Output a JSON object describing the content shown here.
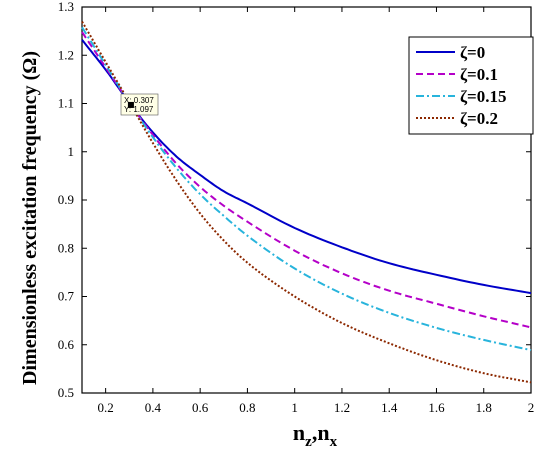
{
  "chart_data": {
    "type": "line",
    "xlabel": "n_z,n_x",
    "xlabel_main": "n",
    "xlabel_sub1": "z",
    "xlabel_sep": ",n",
    "xlabel_sub2": "x",
    "ylabel": "Dimensionless excitation frequency (Ω)",
    "xlim": [
      0.1,
      2
    ],
    "ylim": [
      0.5,
      1.3
    ],
    "xticks": [
      "0.2",
      "0.4",
      "0.6",
      "0.8",
      "1",
      "1.2",
      "1.4",
      "1.6",
      "1.8",
      "2"
    ],
    "yticks": [
      "0.5",
      "0.6",
      "0.7",
      "0.8",
      "0.9",
      "1",
      "1.1",
      "1.2",
      "1.3"
    ],
    "legend_position": "top-right",
    "grid": false,
    "series": [
      {
        "name": "ζ=0",
        "color": "#0000c8",
        "style": "solid",
        "x": [
          0.1,
          0.2,
          0.307,
          0.4,
          0.5,
          0.6,
          0.7,
          0.8,
          1.0,
          1.2,
          1.4,
          1.6,
          1.8,
          2.0
        ],
        "y": [
          1.232,
          1.17,
          1.097,
          1.04,
          0.99,
          0.952,
          0.918,
          0.893,
          0.842,
          0.802,
          0.769,
          0.745,
          0.724,
          0.707
        ]
      },
      {
        "name": "ζ=0.1",
        "color": "#b400c8",
        "style": "dashed",
        "x": [
          0.1,
          0.2,
          0.307,
          0.4,
          0.5,
          0.6,
          0.7,
          0.8,
          1.0,
          1.2,
          1.4,
          1.6,
          1.8,
          2.0
        ],
        "y": [
          1.248,
          1.175,
          1.097,
          1.035,
          0.975,
          0.927,
          0.888,
          0.855,
          0.795,
          0.748,
          0.712,
          0.685,
          0.659,
          0.636
        ]
      },
      {
        "name": "ζ=0.15",
        "color": "#28b4dc",
        "style": "dashdot",
        "x": [
          0.1,
          0.2,
          0.307,
          0.4,
          0.5,
          0.6,
          0.7,
          0.8,
          1.0,
          1.2,
          1.4,
          1.6,
          1.8,
          2.0
        ],
        "y": [
          1.258,
          1.18,
          1.097,
          1.03,
          0.966,
          0.912,
          0.867,
          0.826,
          0.758,
          0.706,
          0.666,
          0.635,
          0.61,
          0.589
        ]
      },
      {
        "name": "ζ=0.2",
        "color": "#8c2800",
        "style": "dotted",
        "x": [
          0.1,
          0.2,
          0.307,
          0.4,
          0.5,
          0.6,
          0.7,
          0.8,
          1.0,
          1.2,
          1.4,
          1.6,
          1.8,
          2.0
        ],
        "y": [
          1.27,
          1.186,
          1.097,
          1.018,
          0.94,
          0.872,
          0.816,
          0.77,
          0.7,
          0.645,
          0.603,
          0.568,
          0.541,
          0.522
        ]
      }
    ],
    "datatip": {
      "x": 0.307,
      "y": 1.097,
      "line1": "X: 0.307",
      "line2": "Y: 1.097"
    }
  }
}
